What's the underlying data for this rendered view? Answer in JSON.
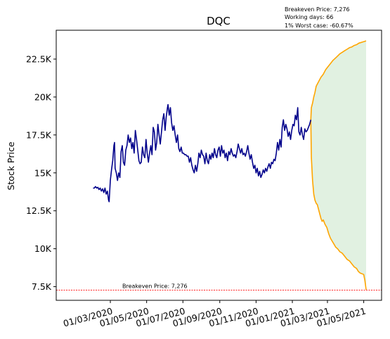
{
  "chart_data": {
    "type": "line",
    "title": "DQC",
    "ylabel": "Stock Price",
    "xlabel": "",
    "ylim": [
      6600,
      24400
    ],
    "xlim": [
      "2019-12-01",
      "2021-05-31"
    ],
    "yticks": [
      {
        "value": 7500,
        "label": "7.5K"
      },
      {
        "value": 10000,
        "label": "10K"
      },
      {
        "value": 12500,
        "label": "12.5K"
      },
      {
        "value": 15000,
        "label": "15K"
      },
      {
        "value": 17500,
        "label": "17.5K"
      },
      {
        "value": 20000,
        "label": "20K"
      },
      {
        "value": 22500,
        "label": "22.5K"
      }
    ],
    "xticks": [
      {
        "date": "2020-03-01",
        "label": "01/03/2020"
      },
      {
        "date": "2020-05-01",
        "label": "01/05/2020"
      },
      {
        "date": "2020-07-01",
        "label": "01/07/2020"
      },
      {
        "date": "2020-09-01",
        "label": "01/09/2020"
      },
      {
        "date": "2020-11-01",
        "label": "01/11/2020"
      },
      {
        "date": "2021-01-01",
        "label": "01/01/2021"
      },
      {
        "date": "2021-03-01",
        "label": "01/03/2021"
      },
      {
        "date": "2021-05-01",
        "label": "01/05/2021"
      }
    ],
    "annotations": {
      "breakeven": "Breakeven Price: 7,276",
      "working_days": "Working days: 66",
      "worst_case": "1% Worst case: -60.67%"
    },
    "breakeven_line": {
      "value": 7276,
      "label": "Breakeven Price: 7,276",
      "color": "#ff0000"
    },
    "grid": false,
    "colors": {
      "price": "#00008b",
      "projection": "#ffa500",
      "band_fill": "#c8e6c8"
    },
    "series": [
      {
        "role": "price",
        "points": [
          [
            "2020-02-01",
            14000
          ],
          [
            "2020-02-03",
            14000
          ],
          [
            "2020-02-05",
            14100
          ],
          [
            "2020-02-07",
            14000
          ],
          [
            "2020-02-09",
            14050
          ],
          [
            "2020-02-11",
            13900
          ],
          [
            "2020-02-13",
            14000
          ],
          [
            "2020-02-15",
            13800
          ],
          [
            "2020-02-17",
            13950
          ],
          [
            "2020-02-19",
            13700
          ],
          [
            "2020-02-21",
            14000
          ],
          [
            "2020-02-23",
            13600
          ],
          [
            "2020-02-25",
            13800
          ],
          [
            "2020-02-27",
            13200
          ],
          [
            "2020-02-28",
            13100
          ],
          [
            "2020-03-01",
            14500
          ],
          [
            "2020-03-03",
            15200
          ],
          [
            "2020-03-05",
            15800
          ],
          [
            "2020-03-07",
            16800
          ],
          [
            "2020-03-08",
            17000
          ],
          [
            "2020-03-09",
            15300
          ],
          [
            "2020-03-11",
            15000
          ],
          [
            "2020-03-13",
            14500
          ],
          [
            "2020-03-15",
            15000
          ],
          [
            "2020-03-17",
            14700
          ],
          [
            "2020-03-19",
            16400
          ],
          [
            "2020-03-21",
            16800
          ],
          [
            "2020-03-23",
            15700
          ],
          [
            "2020-03-25",
            15500
          ],
          [
            "2020-03-27",
            16500
          ],
          [
            "2020-03-29",
            16800
          ],
          [
            "2020-03-31",
            17500
          ],
          [
            "2020-04-02",
            17000
          ],
          [
            "2020-04-04",
            17300
          ],
          [
            "2020-04-06",
            16600
          ],
          [
            "2020-04-08",
            17000
          ],
          [
            "2020-04-10",
            16300
          ],
          [
            "2020-04-12",
            17800
          ],
          [
            "2020-04-14",
            17200
          ],
          [
            "2020-04-16",
            16500
          ],
          [
            "2020-04-18",
            15800
          ],
          [
            "2020-04-20",
            15600
          ],
          [
            "2020-04-22",
            15700
          ],
          [
            "2020-04-24",
            16700
          ],
          [
            "2020-04-26",
            16200
          ],
          [
            "2020-04-28",
            16000
          ],
          [
            "2020-04-30",
            17200
          ],
          [
            "2020-05-02",
            16300
          ],
          [
            "2020-05-04",
            15700
          ],
          [
            "2020-05-06",
            16300
          ],
          [
            "2020-05-08",
            16800
          ],
          [
            "2020-05-10",
            16200
          ],
          [
            "2020-05-12",
            18000
          ],
          [
            "2020-05-14",
            17700
          ],
          [
            "2020-05-16",
            16500
          ],
          [
            "2020-05-18",
            17000
          ],
          [
            "2020-05-20",
            18200
          ],
          [
            "2020-05-22",
            17500
          ],
          [
            "2020-05-24",
            16900
          ],
          [
            "2020-05-26",
            17700
          ],
          [
            "2020-05-28",
            18500
          ],
          [
            "2020-05-30",
            18900
          ],
          [
            "2020-06-01",
            17800
          ],
          [
            "2020-06-03",
            18700
          ],
          [
            "2020-06-05",
            19300
          ],
          [
            "2020-06-06",
            19500
          ],
          [
            "2020-06-08",
            18800
          ],
          [
            "2020-06-10",
            19300
          ],
          [
            "2020-06-12",
            18300
          ],
          [
            "2020-06-14",
            17800
          ],
          [
            "2020-06-16",
            18100
          ],
          [
            "2020-06-18",
            17500
          ],
          [
            "2020-06-20",
            17000
          ],
          [
            "2020-06-22",
            17500
          ],
          [
            "2020-06-24",
            16600
          ],
          [
            "2020-06-26",
            16400
          ],
          [
            "2020-06-28",
            16700
          ],
          [
            "2020-06-30",
            16300
          ],
          [
            "2020-07-02",
            16300
          ],
          [
            "2020-07-04",
            16200
          ],
          [
            "2020-07-06",
            16200
          ],
          [
            "2020-07-08",
            16100
          ],
          [
            "2020-07-10",
            16100
          ],
          [
            "2020-07-12",
            15700
          ],
          [
            "2020-07-14",
            16000
          ],
          [
            "2020-07-16",
            15500
          ],
          [
            "2020-07-18",
            15200
          ],
          [
            "2020-07-20",
            15000
          ],
          [
            "2020-07-22",
            15500
          ],
          [
            "2020-07-24",
            15100
          ],
          [
            "2020-07-26",
            15600
          ],
          [
            "2020-07-28",
            16300
          ],
          [
            "2020-07-30",
            16000
          ],
          [
            "2020-08-01",
            16500
          ],
          [
            "2020-08-03",
            16200
          ],
          [
            "2020-08-05",
            16100
          ],
          [
            "2020-08-07",
            15600
          ],
          [
            "2020-08-09",
            16300
          ],
          [
            "2020-08-11",
            15800
          ],
          [
            "2020-08-13",
            15600
          ],
          [
            "2020-08-15",
            16200
          ],
          [
            "2020-08-17",
            15900
          ],
          [
            "2020-08-19",
            16300
          ],
          [
            "2020-08-21",
            16000
          ],
          [
            "2020-08-23",
            16600
          ],
          [
            "2020-08-25",
            16200
          ],
          [
            "2020-08-27",
            16000
          ],
          [
            "2020-08-29",
            16500
          ],
          [
            "2020-08-31",
            16700
          ],
          [
            "2020-09-02",
            16100
          ],
          [
            "2020-09-04",
            16800
          ],
          [
            "2020-09-06",
            16300
          ],
          [
            "2020-09-08",
            16500
          ],
          [
            "2020-09-10",
            16000
          ],
          [
            "2020-09-12",
            16300
          ],
          [
            "2020-09-14",
            15800
          ],
          [
            "2020-09-16",
            16400
          ],
          [
            "2020-09-18",
            16200
          ],
          [
            "2020-09-20",
            16600
          ],
          [
            "2020-09-22",
            16300
          ],
          [
            "2020-09-24",
            16100
          ],
          [
            "2020-09-26",
            16200
          ],
          [
            "2020-09-28",
            16000
          ],
          [
            "2020-09-30",
            16400
          ],
          [
            "2020-10-02",
            16900
          ],
          [
            "2020-10-04",
            16600
          ],
          [
            "2020-10-06",
            16300
          ],
          [
            "2020-10-08",
            16600
          ],
          [
            "2020-10-10",
            16200
          ],
          [
            "2020-10-12",
            16300
          ],
          [
            "2020-10-14",
            16100
          ],
          [
            "2020-10-16",
            16400
          ],
          [
            "2020-10-18",
            16800
          ],
          [
            "2020-10-20",
            16300
          ],
          [
            "2020-10-22",
            15900
          ],
          [
            "2020-10-24",
            16200
          ],
          [
            "2020-10-26",
            15700
          ],
          [
            "2020-10-28",
            15300
          ],
          [
            "2020-10-30",
            15500
          ],
          [
            "2020-11-01",
            15000
          ],
          [
            "2020-11-03",
            15300
          ],
          [
            "2020-11-05",
            14800
          ],
          [
            "2020-11-07",
            15100
          ],
          [
            "2020-11-09",
            14700
          ],
          [
            "2020-11-11",
            14900
          ],
          [
            "2020-11-13",
            15200
          ],
          [
            "2020-11-15",
            15000
          ],
          [
            "2020-11-17",
            15300
          ],
          [
            "2020-11-19",
            15100
          ],
          [
            "2020-11-21",
            15400
          ],
          [
            "2020-11-23",
            15600
          ],
          [
            "2020-11-25",
            15300
          ],
          [
            "2020-11-27",
            15700
          ],
          [
            "2020-11-29",
            15600
          ],
          [
            "2020-12-01",
            15900
          ],
          [
            "2020-12-03",
            15800
          ],
          [
            "2020-12-05",
            16300
          ],
          [
            "2020-12-07",
            17000
          ],
          [
            "2020-12-09",
            16500
          ],
          [
            "2020-12-11",
            17200
          ],
          [
            "2020-12-13",
            16700
          ],
          [
            "2020-12-15",
            18000
          ],
          [
            "2020-12-17",
            18500
          ],
          [
            "2020-12-19",
            17800
          ],
          [
            "2020-12-21",
            18200
          ],
          [
            "2020-12-23",
            17900
          ],
          [
            "2020-12-25",
            17400
          ],
          [
            "2020-12-27",
            17700
          ],
          [
            "2020-12-29",
            17200
          ],
          [
            "2020-12-31",
            17800
          ],
          [
            "2021-01-02",
            18200
          ],
          [
            "2021-01-04",
            18100
          ],
          [
            "2021-01-06",
            18800
          ],
          [
            "2021-01-08",
            18500
          ],
          [
            "2021-01-10",
            19300
          ],
          [
            "2021-01-12",
            17700
          ],
          [
            "2021-01-14",
            17500
          ],
          [
            "2021-01-16",
            18000
          ],
          [
            "2021-01-18",
            17500
          ],
          [
            "2021-01-20",
            17200
          ],
          [
            "2021-01-22",
            17900
          ],
          [
            "2021-01-24",
            17700
          ],
          [
            "2021-01-26",
            17800
          ],
          [
            "2021-01-28",
            18000
          ],
          [
            "2021-01-30",
            18200
          ],
          [
            "2021-02-01",
            18500
          ]
        ]
      },
      {
        "role": "upper",
        "points": [
          [
            "2021-02-01",
            18500
          ],
          [
            "2021-02-02",
            19300
          ],
          [
            "2021-02-04",
            19600
          ],
          [
            "2021-02-06",
            20000
          ],
          [
            "2021-02-08",
            20300
          ],
          [
            "2021-02-10",
            20700
          ],
          [
            "2021-02-14",
            21000
          ],
          [
            "2021-02-18",
            21300
          ],
          [
            "2021-02-22",
            21500
          ],
          [
            "2021-02-26",
            21800
          ],
          [
            "2021-03-02",
            22000
          ],
          [
            "2021-03-06",
            22200
          ],
          [
            "2021-03-10",
            22400
          ],
          [
            "2021-03-14",
            22550
          ],
          [
            "2021-03-18",
            22700
          ],
          [
            "2021-03-22",
            22850
          ],
          [
            "2021-03-26",
            22950
          ],
          [
            "2021-03-30",
            23050
          ],
          [
            "2021-04-03",
            23150
          ],
          [
            "2021-04-07",
            23250
          ],
          [
            "2021-04-11",
            23300
          ],
          [
            "2021-04-15",
            23400
          ],
          [
            "2021-04-19",
            23450
          ],
          [
            "2021-04-23",
            23550
          ],
          [
            "2021-04-27",
            23600
          ],
          [
            "2021-05-01",
            23650
          ],
          [
            "2021-05-05",
            23700
          ]
        ]
      },
      {
        "role": "lower",
        "points": [
          [
            "2021-02-01",
            18500
          ],
          [
            "2021-02-02",
            16000
          ],
          [
            "2021-02-04",
            14500
          ],
          [
            "2021-02-06",
            13600
          ],
          [
            "2021-02-08",
            13200
          ],
          [
            "2021-02-10",
            13000
          ],
          [
            "2021-02-12",
            12900
          ],
          [
            "2021-02-14",
            12600
          ],
          [
            "2021-02-16",
            12300
          ],
          [
            "2021-02-18",
            12000
          ],
          [
            "2021-02-20",
            11800
          ],
          [
            "2021-02-22",
            11900
          ],
          [
            "2021-02-25",
            11600
          ],
          [
            "2021-02-28",
            11400
          ],
          [
            "2021-03-03",
            11000
          ],
          [
            "2021-03-06",
            10700
          ],
          [
            "2021-03-09",
            10500
          ],
          [
            "2021-03-12",
            10300
          ],
          [
            "2021-03-15",
            10100
          ],
          [
            "2021-03-18",
            10000
          ],
          [
            "2021-03-22",
            9800
          ],
          [
            "2021-03-26",
            9700
          ],
          [
            "2021-03-30",
            9500
          ],
          [
            "2021-04-03",
            9300
          ],
          [
            "2021-04-07",
            9200
          ],
          [
            "2021-04-11",
            9000
          ],
          [
            "2021-04-15",
            8800
          ],
          [
            "2021-04-19",
            8700
          ],
          [
            "2021-04-22",
            8500
          ],
          [
            "2021-04-25",
            8400
          ],
          [
            "2021-04-28",
            8350
          ],
          [
            "2021-05-01",
            8300
          ],
          [
            "2021-05-03",
            7900
          ],
          [
            "2021-05-05",
            7300
          ]
        ]
      }
    ]
  }
}
